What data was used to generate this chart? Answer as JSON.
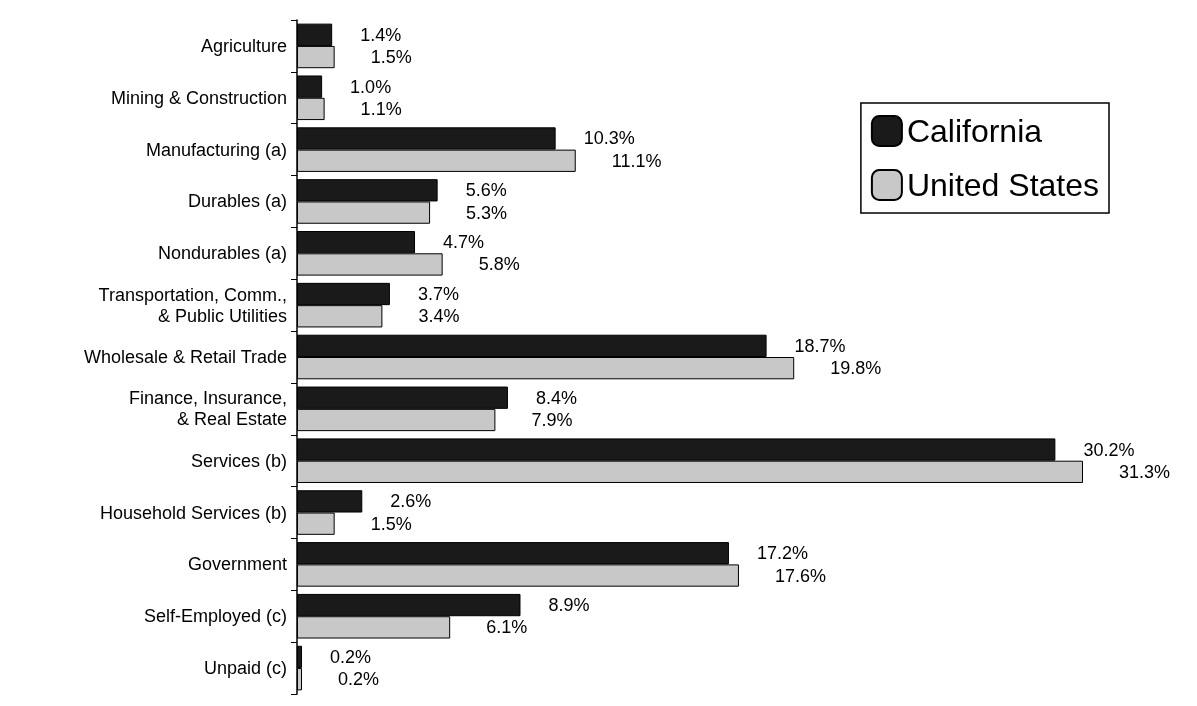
{
  "chart_data": {
    "type": "bar",
    "orientation": "horizontal",
    "legend": "top right",
    "categories": [
      "Agriculture",
      "Mining & Construction",
      "Manufacturing (a)",
      "Durables (a)",
      "Nondurables (a)",
      "Transportation, Comm.,\n& Public Utilities",
      "Wholesale & Retail Trade",
      "Finance, Insurance,\n& Real Estate",
      "Services (b)",
      "Household Services (b)",
      "Government",
      "Self-Employed (c)",
      "Unpaid (c)"
    ],
    "series": [
      {
        "name": "California",
        "color": "#1a1a1a",
        "values": [
          1.4,
          1.0,
          10.3,
          5.6,
          4.7,
          3.7,
          18.7,
          8.4,
          30.2,
          2.6,
          17.2,
          8.9,
          0.2
        ],
        "value_labels": [
          "1.4%",
          "1.0%",
          "10.3%",
          "5.6%",
          "4.7%",
          "3.7%",
          "18.7%",
          "8.4%",
          "30.2%",
          "2.6%",
          "17.2%",
          "8.9%",
          "0.2%"
        ]
      },
      {
        "name": "United States",
        "color": "#c8c8c8",
        "values": [
          1.5,
          1.1,
          11.1,
          5.3,
          5.8,
          3.4,
          19.8,
          7.9,
          31.3,
          1.5,
          17.6,
          6.1,
          0.2
        ],
        "value_labels": [
          "1.5%",
          "1.1%",
          "11.1%",
          "5.3%",
          "5.8%",
          "3.4%",
          "19.8%",
          "7.9%",
          "31.3%",
          "1.5%",
          "17.6%",
          "6.1%",
          "0.2%"
        ]
      }
    ]
  }
}
